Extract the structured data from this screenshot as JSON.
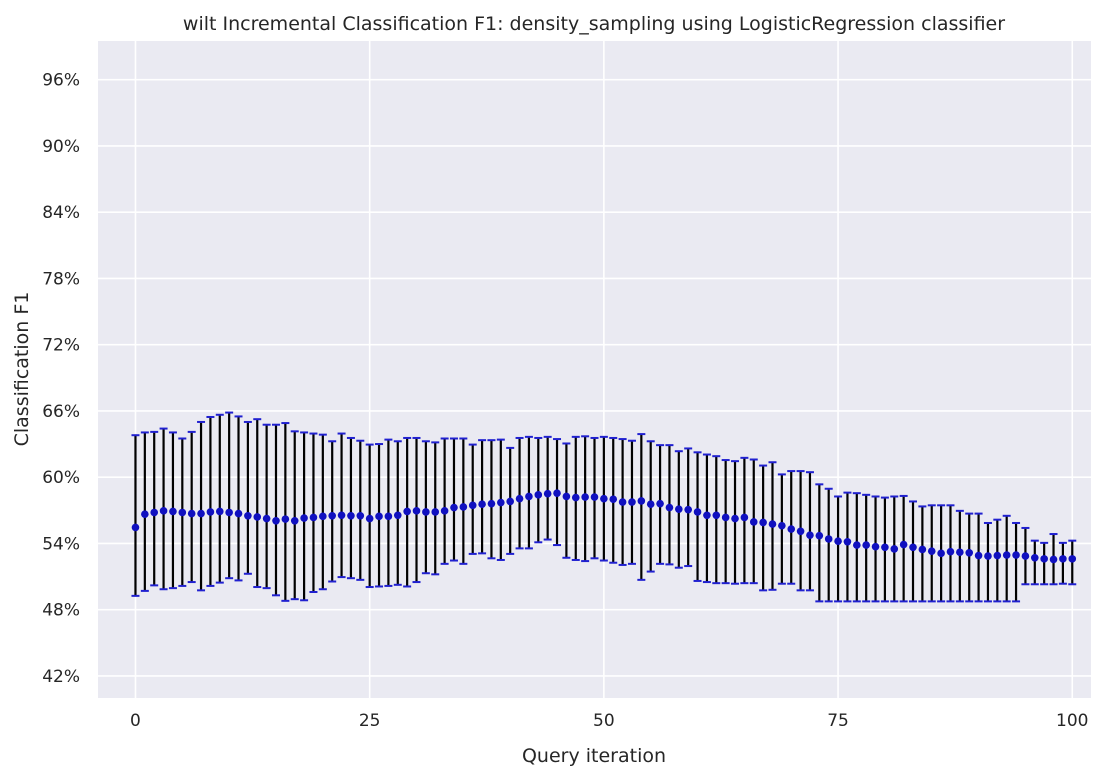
{
  "chart_data": {
    "type": "scatter",
    "title": "wilt Incremental Classification F1: density_sampling using LogisticRegression classifier",
    "xlabel": "Query iteration",
    "ylabel": "Classification F1",
    "xlim": [
      -4,
      102
    ],
    "ylim": [
      0.4,
      0.995
    ],
    "x_ticks": [
      0,
      25,
      50,
      75,
      100
    ],
    "x_tick_labels": [
      "0",
      "25",
      "50",
      "75",
      "100"
    ],
    "y_ticks": [
      0.42,
      0.48,
      0.54,
      0.6,
      0.66,
      0.72,
      0.78,
      0.84,
      0.9,
      0.96
    ],
    "y_tick_labels": [
      "42%",
      "48%",
      "54%",
      "60%",
      "66%",
      "72%",
      "78%",
      "84%",
      "90%",
      "96%"
    ],
    "grid": true,
    "error_bars": true,
    "colors": {
      "background": "#eaeaf2",
      "grid": "#ffffff",
      "marker": "#1010c0",
      "errorbar": "#000000",
      "cap": "#2020d0"
    },
    "series": [
      {
        "x": [
          0,
          1,
          2,
          3,
          4,
          5,
          6,
          7,
          8,
          9,
          10,
          11,
          12,
          13,
          14,
          15,
          16,
          17,
          18,
          19,
          20,
          21,
          22,
          23,
          24,
          25,
          26,
          27,
          28,
          29,
          30,
          31,
          32,
          33,
          34,
          35,
          36,
          37,
          38,
          39,
          40,
          41,
          42,
          43,
          44,
          45,
          46,
          47,
          48,
          49,
          50,
          51,
          52,
          53,
          54,
          55,
          56,
          57,
          58,
          59,
          60,
          61,
          62,
          63,
          64,
          65,
          66,
          67,
          68,
          69,
          70,
          71,
          72,
          73,
          74,
          75,
          76,
          77,
          78,
          79,
          80,
          81,
          82,
          83,
          84,
          85,
          86,
          87,
          88,
          89,
          90,
          91,
          92,
          93,
          94,
          95,
          96,
          97,
          98,
          99,
          100
        ],
        "y": [
          0.5545,
          0.5665,
          0.568,
          0.5695,
          0.569,
          0.568,
          0.567,
          0.567,
          0.5685,
          0.569,
          0.568,
          0.567,
          0.565,
          0.564,
          0.5625,
          0.5605,
          0.562,
          0.5605,
          0.563,
          0.5635,
          0.5645,
          0.565,
          0.5655,
          0.565,
          0.565,
          0.5625,
          0.5645,
          0.5645,
          0.5655,
          0.569,
          0.5695,
          0.5685,
          0.5685,
          0.5695,
          0.5725,
          0.573,
          0.5745,
          0.5755,
          0.576,
          0.577,
          0.578,
          0.5805,
          0.5825,
          0.584,
          0.585,
          0.5855,
          0.5825,
          0.5815,
          0.582,
          0.582,
          0.5805,
          0.58,
          0.5775,
          0.5775,
          0.5785,
          0.5755,
          0.576,
          0.5725,
          0.571,
          0.5705,
          0.5685,
          0.5655,
          0.5655,
          0.5635,
          0.5625,
          0.5635,
          0.5595,
          0.559,
          0.5575,
          0.556,
          0.553,
          0.551,
          0.5475,
          0.547,
          0.544,
          0.542,
          0.5415,
          0.5385,
          0.5385,
          0.537,
          0.5365,
          0.535,
          0.539,
          0.5365,
          0.5345,
          0.533,
          0.531,
          0.5325,
          0.532,
          0.5315,
          0.529,
          0.5285,
          0.529,
          0.5295,
          0.5295,
          0.5285,
          0.527,
          0.526,
          0.5255,
          0.526,
          0.526
        ],
        "upper": [
          0.638,
          0.6405,
          0.641,
          0.644,
          0.6405,
          0.635,
          0.641,
          0.65,
          0.6545,
          0.6565,
          0.6585,
          0.655,
          0.65,
          0.6525,
          0.6475,
          0.6475,
          0.649,
          0.6415,
          0.6405,
          0.6395,
          0.6385,
          0.6325,
          0.6395,
          0.6355,
          0.633,
          0.6295,
          0.63,
          0.634,
          0.6325,
          0.6355,
          0.6355,
          0.6325,
          0.6315,
          0.635,
          0.635,
          0.635,
          0.6295,
          0.6335,
          0.6335,
          0.634,
          0.6265,
          0.6355,
          0.6365,
          0.6355,
          0.6365,
          0.6345,
          0.6305,
          0.6365,
          0.637,
          0.6355,
          0.6365,
          0.6355,
          0.6345,
          0.633,
          0.639,
          0.6325,
          0.629,
          0.629,
          0.6235,
          0.626,
          0.6225,
          0.6205,
          0.619,
          0.6155,
          0.6145,
          0.6175,
          0.616,
          0.6105,
          0.6135,
          0.6025,
          0.6055,
          0.6055,
          0.6045,
          0.5935,
          0.5895,
          0.5825,
          0.586,
          0.5855,
          0.584,
          0.5825,
          0.5815,
          0.5825,
          0.583,
          0.578,
          0.5735,
          0.5745,
          0.5745,
          0.5745,
          0.5695,
          0.567,
          0.567,
          0.5585,
          0.5615,
          0.565,
          0.5585,
          0.554,
          0.5425,
          0.5405,
          0.5485,
          0.5405,
          0.5425
        ],
        "lower": [
          0.4925,
          0.497,
          0.502,
          0.4985,
          0.4995,
          0.5015,
          0.505,
          0.4975,
          0.5015,
          0.5045,
          0.5085,
          0.5065,
          0.5125,
          0.5005,
          0.4995,
          0.493,
          0.488,
          0.4895,
          0.4885,
          0.496,
          0.4985,
          0.5055,
          0.5095,
          0.5085,
          0.507,
          0.5005,
          0.501,
          0.5015,
          0.5025,
          0.501,
          0.505,
          0.513,
          0.512,
          0.5215,
          0.5245,
          0.5215,
          0.5305,
          0.531,
          0.5265,
          0.525,
          0.5305,
          0.5355,
          0.5355,
          0.541,
          0.5435,
          0.5385,
          0.527,
          0.525,
          0.524,
          0.5265,
          0.5245,
          0.5225,
          0.5205,
          0.5215,
          0.507,
          0.5145,
          0.5215,
          0.521,
          0.518,
          0.5195,
          0.506,
          0.505,
          0.504,
          0.504,
          0.5035,
          0.504,
          0.504,
          0.4975,
          0.498,
          0.5035,
          0.5035,
          0.4975,
          0.4975,
          0.4875,
          0.4875,
          0.4875,
          0.4875,
          0.4875,
          0.4875,
          0.4875,
          0.4875,
          0.4875,
          0.4875,
          0.4875,
          0.4875,
          0.4875,
          0.4875,
          0.4875,
          0.4875,
          0.4875,
          0.4875,
          0.4875,
          0.4875,
          0.4875,
          0.4875,
          0.503,
          0.503,
          0.503,
          0.503,
          0.5035,
          0.503
        ]
      }
    ]
  }
}
